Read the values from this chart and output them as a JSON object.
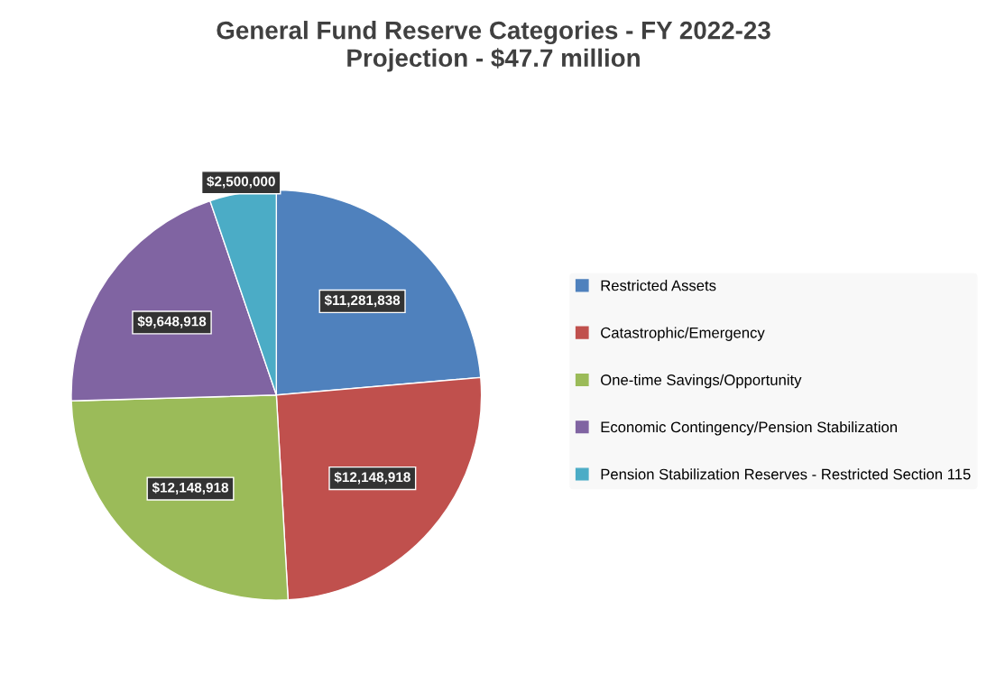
{
  "chart_data": {
    "type": "pie",
    "title": "General Fund Reserve Categories - FY 2022-23\nProjection - $47.7 million",
    "categories": [
      "Restricted Assets",
      "Catastrophic/Emergency",
      "One-time Savings/Opportunity",
      "Economic Contingency/Pension Stabilization",
      "Pension Stabilization Reserves - Restricted Section 115"
    ],
    "values": [
      11281838,
      12148918,
      12148918,
      9648918,
      2500000
    ],
    "colors": [
      "#4f81bd",
      "#c0504d",
      "#9bbb59",
      "#8064a2",
      "#4bacc6"
    ],
    "value_labels": [
      "$11,281,838",
      "$12,148,918",
      "$12,148,918",
      "$9,648,918",
      "$2,500,000"
    ],
    "legend": "right"
  }
}
